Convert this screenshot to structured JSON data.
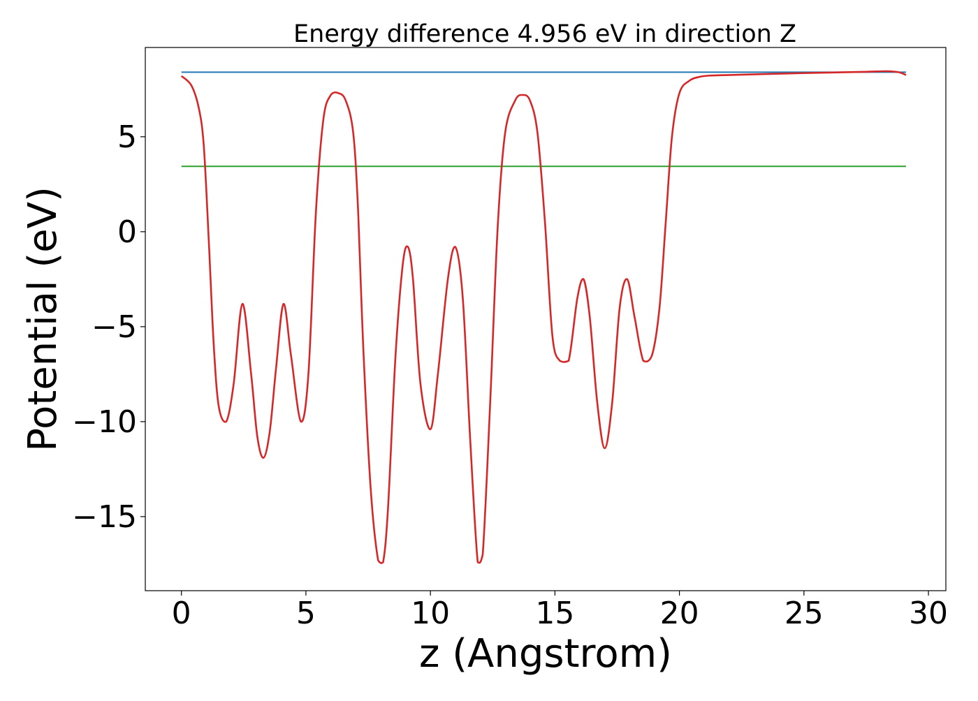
{
  "chart_data": {
    "type": "line",
    "title": "Energy difference 4.956 eV in direction Z",
    "xlabel": "z (Angstrom)",
    "ylabel": "Potential (eV)",
    "xlim": [
      -1.45,
      30.7
    ],
    "ylim": [
      -18.9,
      9.7
    ],
    "x_ticks": [
      0,
      5,
      10,
      15,
      20,
      25,
      30
    ],
    "y_ticks": [
      -15,
      -10,
      -5,
      0,
      5
    ],
    "x_tick_labels": [
      "0",
      "5",
      "10",
      "15",
      "20",
      "25",
      "30"
    ],
    "y_tick_labels": [
      "−15",
      "−10",
      "−5",
      "0",
      "5"
    ],
    "grid": false,
    "legend": "none",
    "series": [
      {
        "color": "#1f77b4",
        "kind": "horizontal",
        "x": [
          0,
          29.1
        ],
        "y": [
          8.4,
          8.4
        ]
      },
      {
        "color": "#2ca02c",
        "kind": "horizontal",
        "x": [
          0,
          29.1
        ],
        "y": [
          3.44,
          3.44
        ]
      },
      {
        "color": "#d62728",
        "kind": "curve",
        "x": [
          0,
          0.4,
          0.7,
          0.9,
          1.1,
          1.3,
          1.5,
          1.8,
          2.1,
          2.45,
          2.8,
          3.05,
          3.3,
          3.55,
          3.8,
          4.1,
          4.4,
          4.8,
          5.1,
          5.4,
          5.7,
          6.0,
          6.3,
          6.6,
          6.9,
          7.1,
          7.3,
          7.6,
          7.9,
          8.1,
          8.3,
          8.6,
          8.9,
          9.1,
          9.3,
          9.6,
          10.0,
          10.3,
          10.7,
          11.0,
          11.3,
          11.6,
          11.9,
          12.1,
          12.4,
          12.7,
          13.0,
          13.4,
          13.7,
          14.0,
          14.3,
          14.6,
          14.9,
          15.2,
          15.55,
          15.9,
          16.15,
          16.4,
          16.7,
          17.0,
          17.3,
          17.6,
          17.9,
          18.2,
          18.55,
          18.9,
          19.2,
          19.45,
          19.7,
          20.0,
          20.4,
          20.8,
          21.2,
          22,
          24,
          26,
          27.5,
          28.3,
          28.8,
          29.1
        ],
        "y": [
          8.2,
          7.7,
          6.5,
          4.5,
          -0.5,
          -6,
          -9.2,
          -10.0,
          -8.0,
          -3.8,
          -7.5,
          -10.8,
          -11.9,
          -10.5,
          -7.2,
          -3.8,
          -6.5,
          -10.0,
          -7.5,
          1.0,
          5.9,
          7.2,
          7.3,
          6.9,
          5.2,
          1.0,
          -6.0,
          -13.5,
          -17.3,
          -17.4,
          -14.5,
          -6.5,
          -1.6,
          -0.8,
          -2.5,
          -8.0,
          -10.4,
          -7.5,
          -2.5,
          -0.8,
          -3.5,
          -11.0,
          -17.4,
          -17.0,
          -9.0,
          0.2,
          5.2,
          6.9,
          7.2,
          6.9,
          5.2,
          0.5,
          -5.5,
          -6.8,
          -6.8,
          -3.5,
          -2.5,
          -4.5,
          -9.0,
          -11.4,
          -9.0,
          -4.0,
          -2.5,
          -4.5,
          -6.8,
          -6.5,
          -4.0,
          0.5,
          5.0,
          7.3,
          7.95,
          8.15,
          8.22,
          8.25,
          8.32,
          8.38,
          8.42,
          8.45,
          8.4,
          8.25
        ]
      }
    ]
  }
}
